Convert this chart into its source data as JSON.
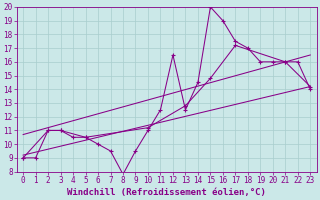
{
  "xlabel": "Windchill (Refroidissement éolien,°C)",
  "bg_color": "#cbe8e8",
  "grid_color": "#a8cece",
  "line_color": "#880088",
  "xlim": [
    -0.5,
    23.5
  ],
  "ylim": [
    8,
    20
  ],
  "xticks": [
    0,
    1,
    2,
    3,
    4,
    5,
    6,
    7,
    8,
    9,
    10,
    11,
    12,
    13,
    14,
    15,
    16,
    17,
    18,
    19,
    20,
    21,
    22,
    23
  ],
  "yticks": [
    8,
    9,
    10,
    11,
    12,
    13,
    14,
    15,
    16,
    17,
    18,
    19,
    20
  ],
  "line1_x": [
    0,
    1,
    2,
    3,
    4,
    5,
    6,
    7,
    8,
    9,
    10,
    11,
    12,
    13,
    14,
    15,
    16,
    17,
    18,
    19,
    20,
    21,
    22,
    23
  ],
  "line1_y": [
    9.0,
    9.0,
    11.0,
    11.0,
    10.5,
    10.5,
    10.0,
    9.5,
    7.8,
    9.5,
    11.0,
    12.5,
    16.5,
    12.5,
    14.5,
    20.0,
    19.0,
    17.5,
    17.0,
    16.0,
    16.0,
    16.0,
    16.0,
    14.0
  ],
  "line2_x": [
    0,
    2,
    3,
    5,
    10,
    13,
    15,
    17,
    21,
    23
  ],
  "line2_y": [
    9.0,
    11.0,
    11.0,
    10.5,
    11.2,
    12.8,
    14.8,
    17.2,
    16.0,
    14.2
  ],
  "line3_x": [
    0,
    23
  ],
  "line3_y": [
    9.2,
    14.2
  ],
  "line4_x": [
    0,
    23
  ],
  "line4_y": [
    10.7,
    16.5
  ],
  "tickfontsize": 5.5,
  "labelfontsize": 6.5
}
